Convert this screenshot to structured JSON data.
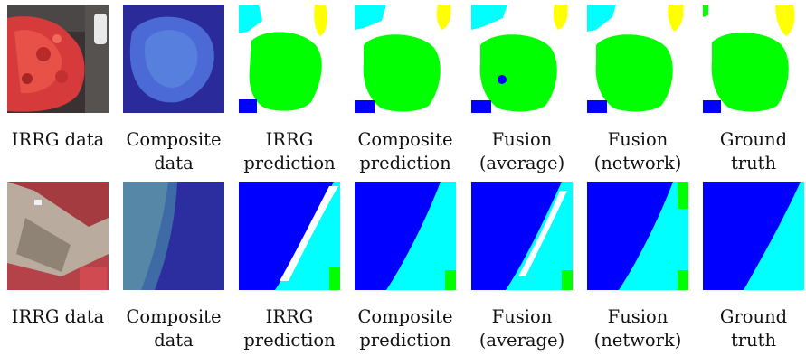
{
  "figure": {
    "rows": [
      {
        "captions": [
          {
            "l1": "IRRG data",
            "l2": ""
          },
          {
            "l1": "Composite",
            "l2": "data"
          },
          {
            "l1": "IRRG",
            "l2": "prediction"
          },
          {
            "l1": "Composite",
            "l2": "prediction"
          },
          {
            "l1": "Fusion",
            "l2": "(average)"
          },
          {
            "l1": "Fusion",
            "l2": "(network)"
          },
          {
            "l1": "Ground",
            "l2": "truth"
          }
        ]
      },
      {
        "captions": [
          {
            "l1": "IRRG data",
            "l2": ""
          },
          {
            "l1": "Composite",
            "l2": "data"
          },
          {
            "l1": "IRRG",
            "l2": "prediction"
          },
          {
            "l1": "Composite",
            "l2": "prediction"
          },
          {
            "l1": "Fusion",
            "l2": "(average)"
          },
          {
            "l1": "Fusion",
            "l2": "(network)"
          },
          {
            "l1": "Ground",
            "l2": "truth"
          }
        ]
      }
    ],
    "colors": {
      "impervious": "#ffffff",
      "building": "#0000ff",
      "low_vegetation": "#00ffff",
      "tree": "#00ff00",
      "car": "#ffff00"
    }
  }
}
